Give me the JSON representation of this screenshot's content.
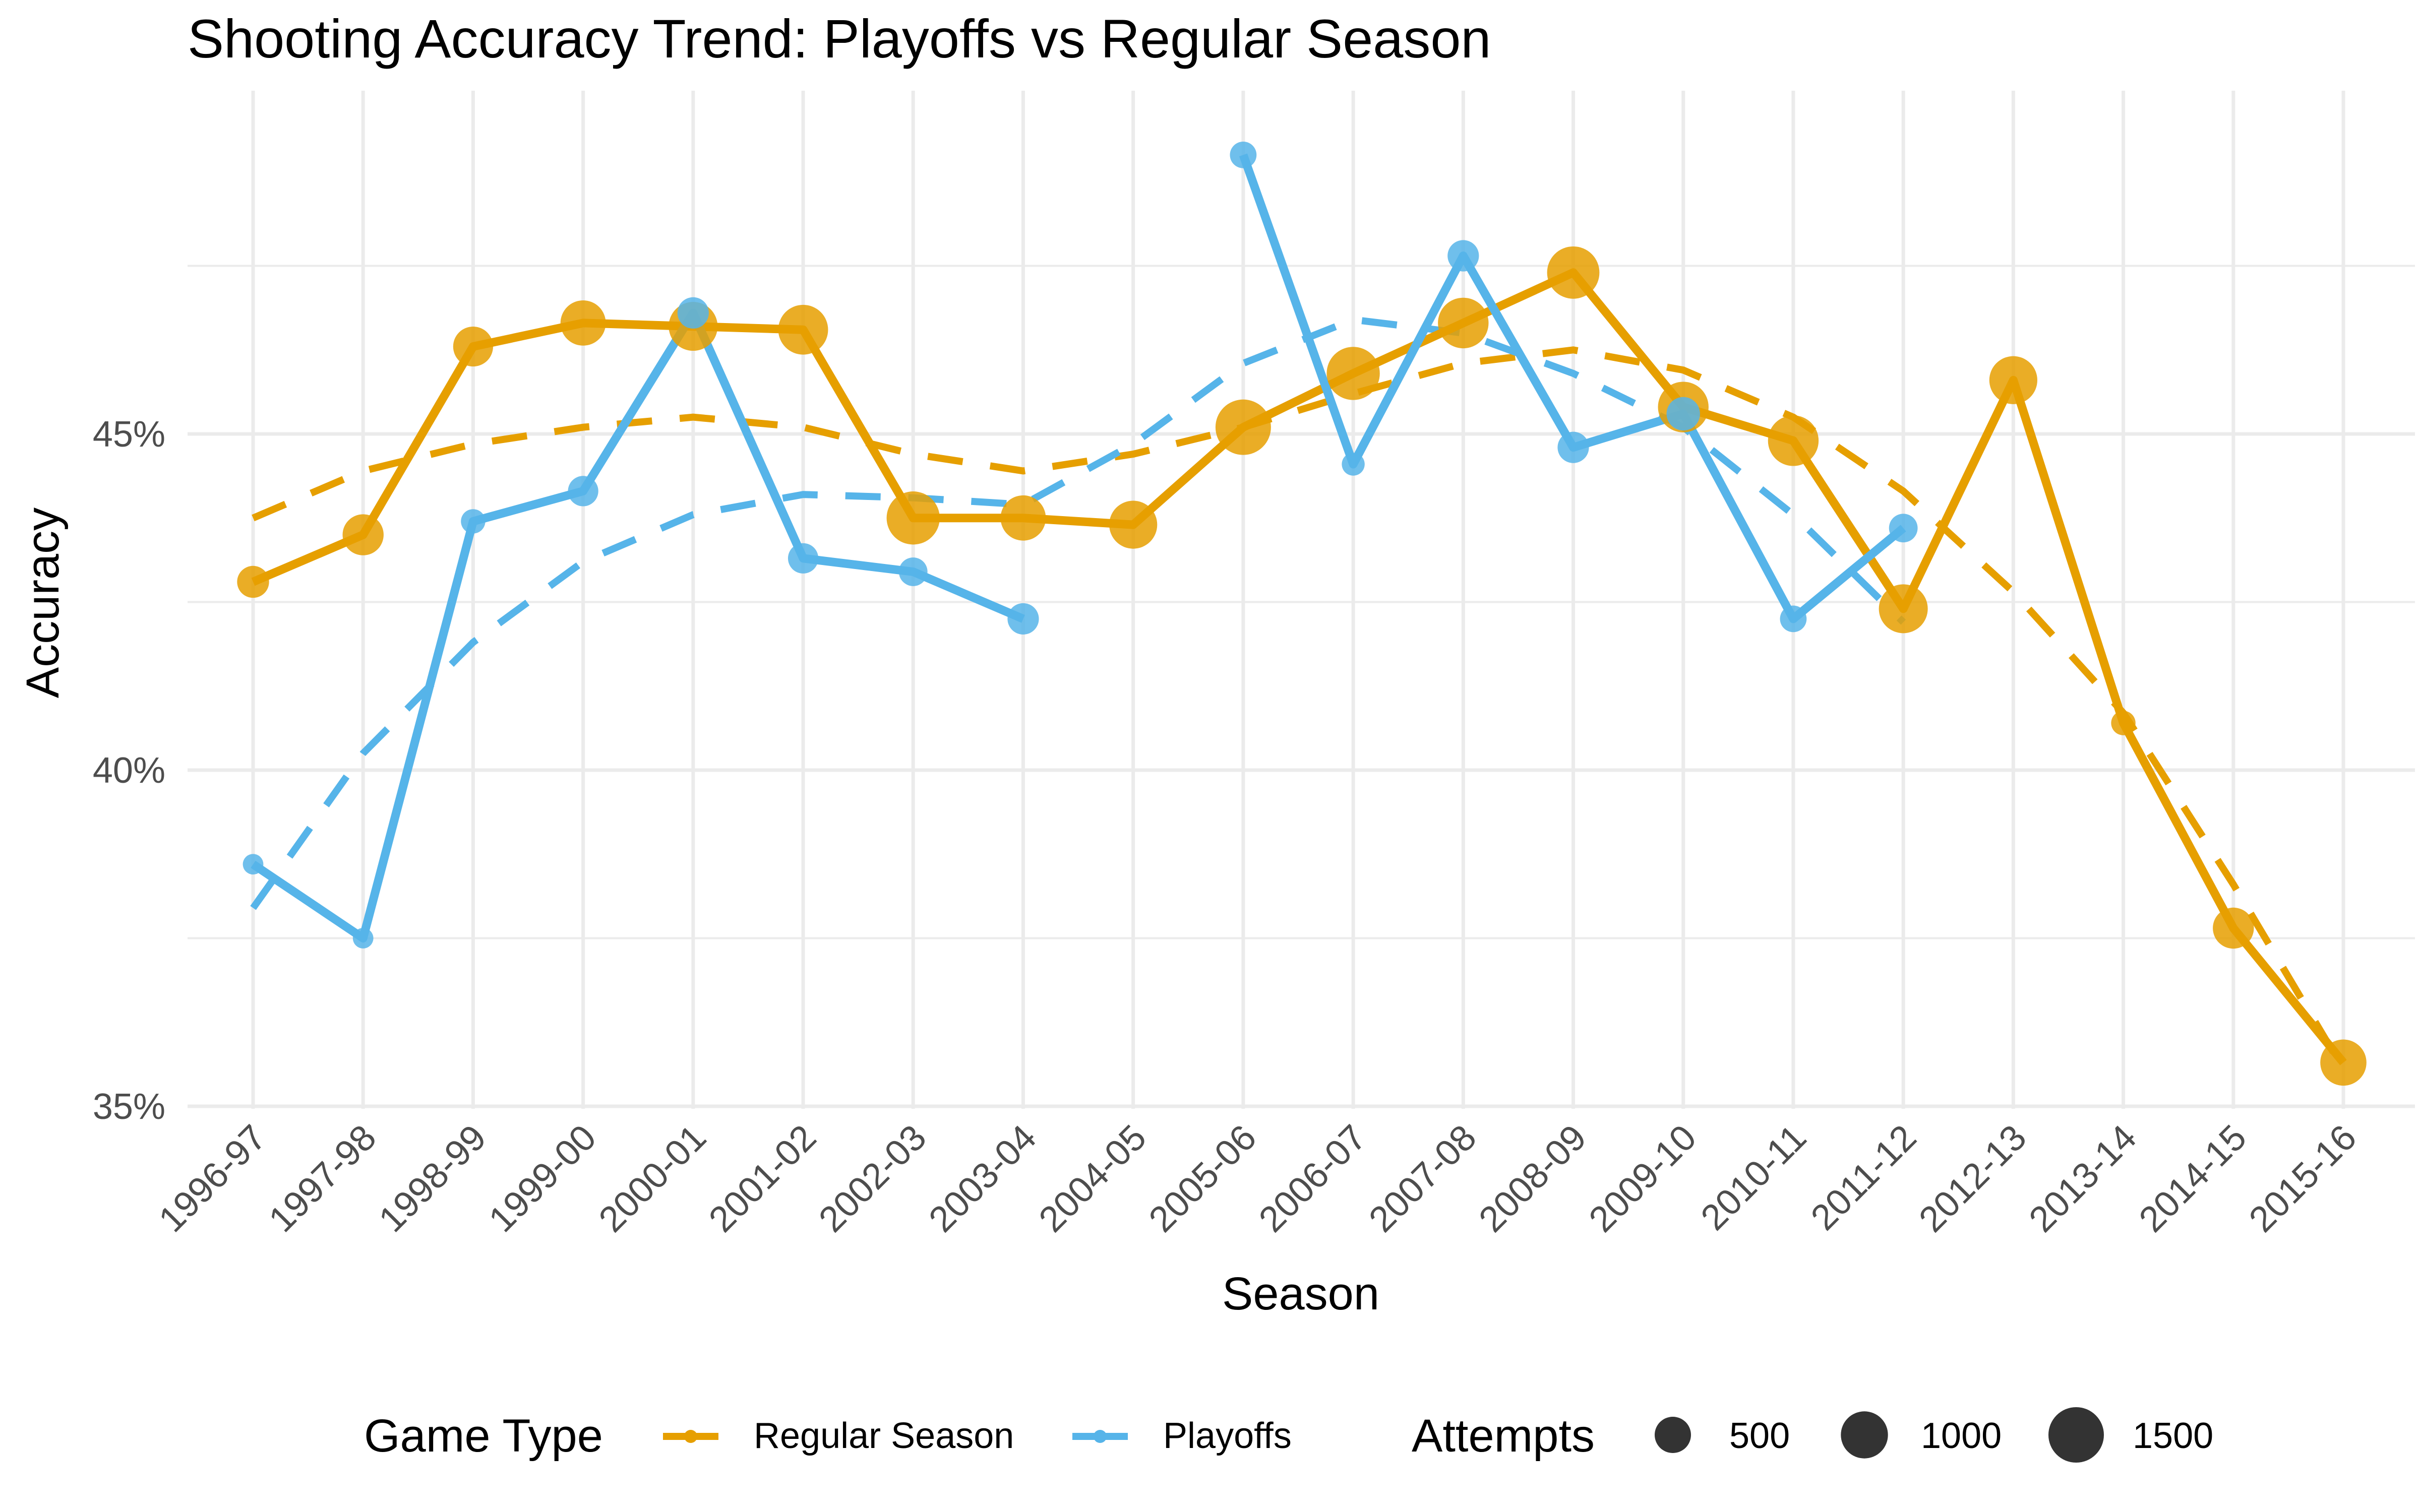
{
  "chart_data": {
    "type": "line",
    "title": "Shooting Accuracy Trend: Playoffs vs Regular Season",
    "xlabel": "Season",
    "ylabel": "Accuracy",
    "categories": [
      "1996-97",
      "1997-98",
      "1998-99",
      "1999-00",
      "2000-01",
      "2001-02",
      "2002-03",
      "2003-04",
      "2004-05",
      "2005-06",
      "2006-07",
      "2007-08",
      "2008-09",
      "2009-10",
      "2010-11",
      "2011-12",
      "2012-13",
      "2013-14",
      "2014-15",
      "2015-16"
    ],
    "ylim": [
      0.35,
      0.5
    ],
    "yticks": [
      0.35,
      0.4,
      0.45
    ],
    "ytick_labels": [
      "35%",
      "40%",
      "45%"
    ],
    "grid": true,
    "legend_position": "bottom",
    "legend": {
      "color_title": "Game Type",
      "size_title": "Attempts",
      "size_breaks": [
        500,
        1000,
        1500
      ],
      "size_labels": [
        "500",
        "1000",
        "1500"
      ]
    },
    "series": [
      {
        "name": "Regular Season",
        "color": "#E69F00",
        "values": [
          0.428,
          0.435,
          0.463,
          0.4665,
          0.466,
          0.4655,
          0.4375,
          0.4375,
          0.4365,
          0.451,
          0.459,
          0.4665,
          0.474,
          0.454,
          0.449,
          0.424,
          0.458,
          0.407,
          0.3765,
          0.3565
        ],
        "attempts": [
          350,
          700,
          650,
          900,
          1100,
          1150,
          1350,
          900,
          1050,
          1500,
          1350,
          1200,
          1300,
          1200,
          1200,
          1100,
          1050,
          150,
          700,
          950
        ],
        "trend": [
          0.4375,
          0.4445,
          0.4485,
          0.451,
          0.4525,
          0.451,
          0.447,
          0.4445,
          0.447,
          0.451,
          0.456,
          0.4605,
          0.4625,
          0.4595,
          0.4525,
          0.4415,
          0.4265,
          0.4085,
          0.383,
          0.3555
        ]
      },
      {
        "name": "Playoffs",
        "color": "#56B4E9",
        "values": [
          0.386,
          0.375,
          0.437,
          0.4415,
          0.468,
          0.4315,
          0.4295,
          0.4225,
          null,
          0.4915,
          0.4455,
          0.4765,
          0.448,
          0.453,
          0.4225,
          0.436,
          null,
          null,
          null,
          null
        ],
        "attempts": [
          80,
          80,
          150,
          300,
          330,
          300,
          250,
          330,
          null,
          200,
          120,
          330,
          330,
          400,
          200,
          250,
          null,
          null,
          null,
          null
        ],
        "trend": [
          0.3795,
          0.4025,
          0.419,
          0.431,
          0.438,
          0.441,
          0.4405,
          0.4395,
          0.4485,
          0.4605,
          0.467,
          0.465,
          0.459,
          0.451,
          0.438,
          0.422,
          null,
          null,
          null,
          null
        ]
      }
    ]
  }
}
